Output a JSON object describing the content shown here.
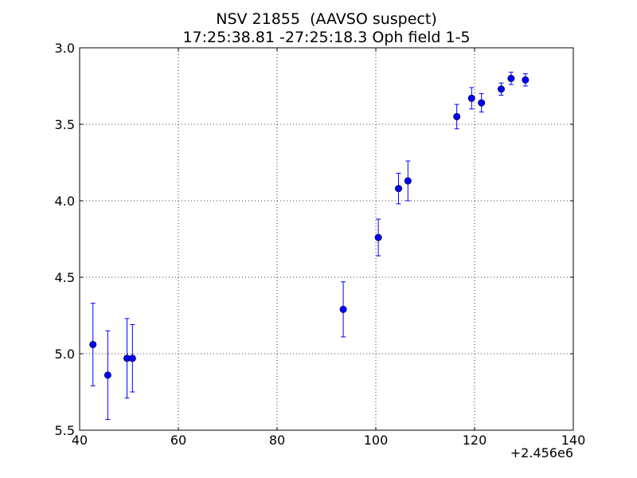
{
  "chart_data": {
    "type": "scatter",
    "title": "NSV 21855  (AAVSO suspect)",
    "subtitle": "17:25:38.81 -27:25:18.3 Oph field 1-5",
    "xlabel": "",
    "ylabel": "",
    "x_offset_label": "+2.456e6",
    "xlim": [
      40,
      140
    ],
    "ylim": [
      3.0,
      5.5
    ],
    "y_inverted": true,
    "grid": true,
    "x_ticks": [
      40,
      60,
      80,
      100,
      120,
      140
    ],
    "x_tick_labels": [
      "40",
      "60",
      "80",
      "100",
      "120",
      "140"
    ],
    "y_ticks": [
      3.0,
      3.5,
      4.0,
      4.5,
      5.0,
      5.5
    ],
    "y_tick_labels": [
      "3.0",
      "3.5",
      "4.0",
      "4.5",
      "5.0",
      "5.5"
    ],
    "marker_color": "#0000ff",
    "series": [
      {
        "points": [
          {
            "x": 42.7,
            "y": 4.94,
            "err": 0.27
          },
          {
            "x": 45.7,
            "y": 5.14,
            "err": 0.29
          },
          {
            "x": 49.6,
            "y": 5.03,
            "err": 0.26
          },
          {
            "x": 50.7,
            "y": 5.03,
            "err": 0.22
          },
          {
            "x": 93.4,
            "y": 4.71,
            "err": 0.18
          },
          {
            "x": 100.5,
            "y": 4.24,
            "err": 0.12
          },
          {
            "x": 104.6,
            "y": 3.92,
            "err": 0.1
          },
          {
            "x": 106.5,
            "y": 3.87,
            "err": 0.13
          },
          {
            "x": 116.4,
            "y": 3.45,
            "err": 0.08
          },
          {
            "x": 119.4,
            "y": 3.33,
            "err": 0.07
          },
          {
            "x": 121.4,
            "y": 3.36,
            "err": 0.06
          },
          {
            "x": 125.4,
            "y": 3.27,
            "err": 0.04
          },
          {
            "x": 127.4,
            "y": 3.2,
            "err": 0.04
          },
          {
            "x": 130.3,
            "y": 3.21,
            "err": 0.04
          }
        ]
      }
    ]
  }
}
